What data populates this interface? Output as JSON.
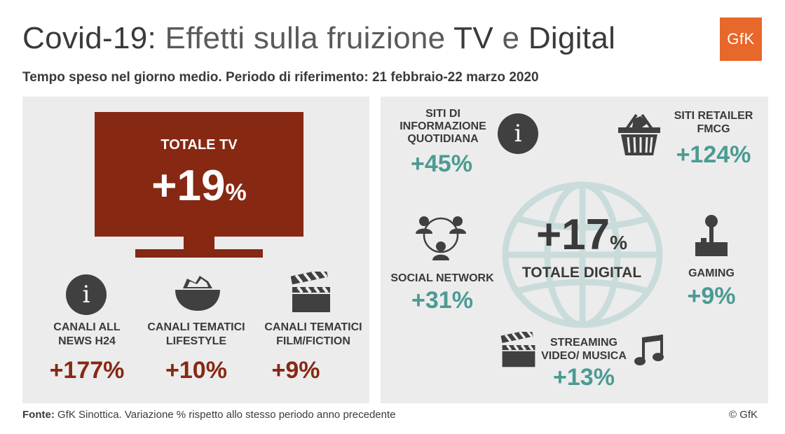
{
  "header": {
    "title_part1": "Covid-19:",
    "title_part2": "Effetti sulla fruizione",
    "title_part3": "TV",
    "title_part4": "e",
    "title_part5": "Digital",
    "subtitle": "Tempo speso nel giorno medio. Periodo di riferimento: 21 febbraio-22 marzo 2020",
    "logo_text": "GfK"
  },
  "colors": {
    "tv_red": "#872813",
    "digital_teal": "#4b9b93",
    "globe": "#c9dcdb",
    "logo_orange": "#e8672a"
  },
  "tv": {
    "label": "TOTALE TV",
    "value": "+19",
    "unit": "%",
    "channels": [
      {
        "icon": "info-icon",
        "label_line1": "CANALI ALL",
        "label_line2": "NEWS H24",
        "value": "+177%"
      },
      {
        "icon": "food-bowl-icon",
        "label_line1": "CANALI TEMATICI",
        "label_line2": "LIFESTYLE",
        "value": "+10%"
      },
      {
        "icon": "clapperboard-icon",
        "label_line1": "CANALI TEMATICI",
        "label_line2": "FILM/FICTION",
        "value": "+9%"
      }
    ]
  },
  "digital": {
    "label": "TOTALE DIGITAL",
    "value": "+17",
    "unit": "%",
    "news": {
      "line1": "SITI DI",
      "line2": "INFORMAZIONE",
      "line3": "QUOTIDIANA",
      "value": "+45%"
    },
    "retail": {
      "line1": "SITI RETAILER",
      "line2": "FMCG",
      "value": "+124%"
    },
    "social": {
      "label": "SOCIAL NETWORK",
      "value": "+31%"
    },
    "gaming": {
      "label": "GAMING",
      "value": "+9%"
    },
    "streaming": {
      "line1": "STREAMING",
      "line2": "VIDEO/ MUSICA",
      "value": "+13%"
    }
  },
  "footer": {
    "source_label": "Fonte:",
    "source_text": " GfK Sinottica. Variazione % rispetto allo stesso periodo anno precedente",
    "copyright": "© GfK"
  }
}
